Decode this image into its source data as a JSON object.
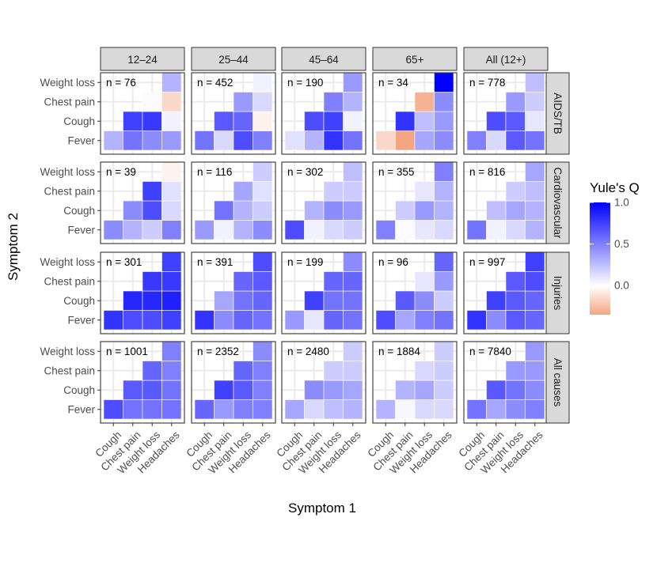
{
  "chart_data": {
    "type": "heatmap",
    "xlabel": "Symptom 1",
    "ylabel": "Symptom 2",
    "x_categories": [
      "Cough",
      "Chest pain",
      "Weight loss",
      "Headaches"
    ],
    "y_categories": [
      "Fever",
      "Cough",
      "Chest pain",
      "Weight loss"
    ],
    "column_facets": [
      "12–24",
      "25–44",
      "45–64",
      "65+",
      "All (12+)"
    ],
    "row_facets": [
      "AIDS/TB",
      "Cardiovascular",
      "Injuries",
      "All causes"
    ],
    "n_labels": [
      [
        "n = 76",
        "n = 452",
        "n = 190",
        "n = 34",
        "n = 778"
      ],
      [
        "n = 39",
        "n = 116",
        "n = 302",
        "n = 355",
        "n = 816"
      ],
      [
        "n = 301",
        "n = 391",
        "n = 199",
        "n = 96",
        "n = 997"
      ],
      [
        "n = 1001",
        "n = 2352",
        "n = 2480",
        "n = 1884",
        "n = 7840"
      ]
    ],
    "legend": {
      "title": "Yule's Q",
      "breaks": [
        1.0,
        0.5,
        0.0
      ],
      "break_labels": [
        "1.0",
        "0.5",
        "0.0"
      ],
      "limits": [
        -0.35,
        1.0
      ]
    },
    "colors": {
      "high": "#0000ff",
      "mid": "#ffffff",
      "low": "#f4a582",
      "panel_border": "#333333",
      "strip_fill": "#d9d9d9",
      "grid": "#ebebeb"
    },
    "cell_order_note": "values[row_facet][col_facet] = [Cough×Fever, ChestPain×Fever, WeightLoss×Fever, Headaches×Fever, ChestPain×Cough, WeightLoss×Cough, Headaches×Cough, WeightLoss×ChestPain, Headaches×ChestPain, Headaches×WeightLoss]",
    "values": [
      [
        [
          0.3,
          0.55,
          0.45,
          0.4,
          0.75,
          0.78,
          0.05,
          0.02,
          -0.15,
          0.3
        ],
        [
          0.55,
          0.15,
          0.7,
          0.5,
          0.65,
          0.6,
          -0.05,
          0.4,
          0.15,
          0.05
        ],
        [
          0.12,
          0.3,
          0.8,
          0.55,
          0.7,
          0.75,
          0.05,
          0.5,
          0.3,
          0.4
        ],
        [
          -0.15,
          -0.35,
          0.35,
          0.45,
          0.8,
          0.25,
          0.4,
          -0.3,
          0.45,
          1.0
        ],
        [
          0.5,
          0.15,
          0.65,
          0.55,
          0.7,
          0.65,
          0.1,
          0.4,
          0.2,
          0.25
        ]
      ],
      [
        [
          0.45,
          0.3,
          0.2,
          0.5,
          0.45,
          0.7,
          0.15,
          0.75,
          0.12,
          -0.05
        ],
        [
          0.4,
          0.05,
          0.3,
          0.45,
          0.55,
          0.3,
          0.2,
          0.35,
          0.12,
          0.2
        ],
        [
          0.7,
          0.05,
          0.15,
          0.2,
          0.3,
          0.45,
          0.4,
          0.2,
          0.2,
          0.25
        ],
        [
          0.5,
          0.02,
          0.1,
          0.15,
          0.2,
          0.4,
          0.3,
          0.1,
          0.3,
          0.5
        ],
        [
          0.55,
          0.05,
          0.15,
          0.3,
          0.25,
          0.35,
          0.3,
          0.2,
          0.25,
          0.35
        ]
      ],
      [
        [
          0.8,
          0.7,
          0.7,
          0.75,
          0.85,
          0.85,
          0.88,
          0.78,
          0.78,
          0.75
        ],
        [
          0.8,
          0.45,
          0.6,
          0.55,
          0.35,
          0.55,
          0.6,
          0.6,
          0.65,
          0.7
        ],
        [
          0.4,
          0.1,
          0.6,
          0.55,
          0.75,
          0.55,
          0.55,
          0.6,
          0.6,
          0.45
        ],
        [
          0.7,
          0.35,
          0.5,
          0.55,
          0.65,
          0.45,
          0.2,
          0.1,
          0.4,
          0.6
        ],
        [
          0.8,
          0.45,
          0.65,
          0.6,
          0.75,
          0.65,
          0.6,
          0.65,
          0.7,
          0.75
        ]
      ],
      [
        [
          0.7,
          0.55,
          0.55,
          0.55,
          0.65,
          0.65,
          0.55,
          0.6,
          0.5,
          0.5
        ],
        [
          0.6,
          0.4,
          0.5,
          0.5,
          0.75,
          0.65,
          0.5,
          0.6,
          0.5,
          0.45
        ],
        [
          0.35,
          0.15,
          0.25,
          0.3,
          0.45,
          0.4,
          0.35,
          0.2,
          0.2,
          0.2
        ],
        [
          0.3,
          0.03,
          0.15,
          0.15,
          0.3,
          0.35,
          0.2,
          0.15,
          0.2,
          0.2
        ],
        [
          0.55,
          0.35,
          0.45,
          0.5,
          0.65,
          0.55,
          0.45,
          0.4,
          0.4,
          0.4
        ]
      ]
    ]
  }
}
